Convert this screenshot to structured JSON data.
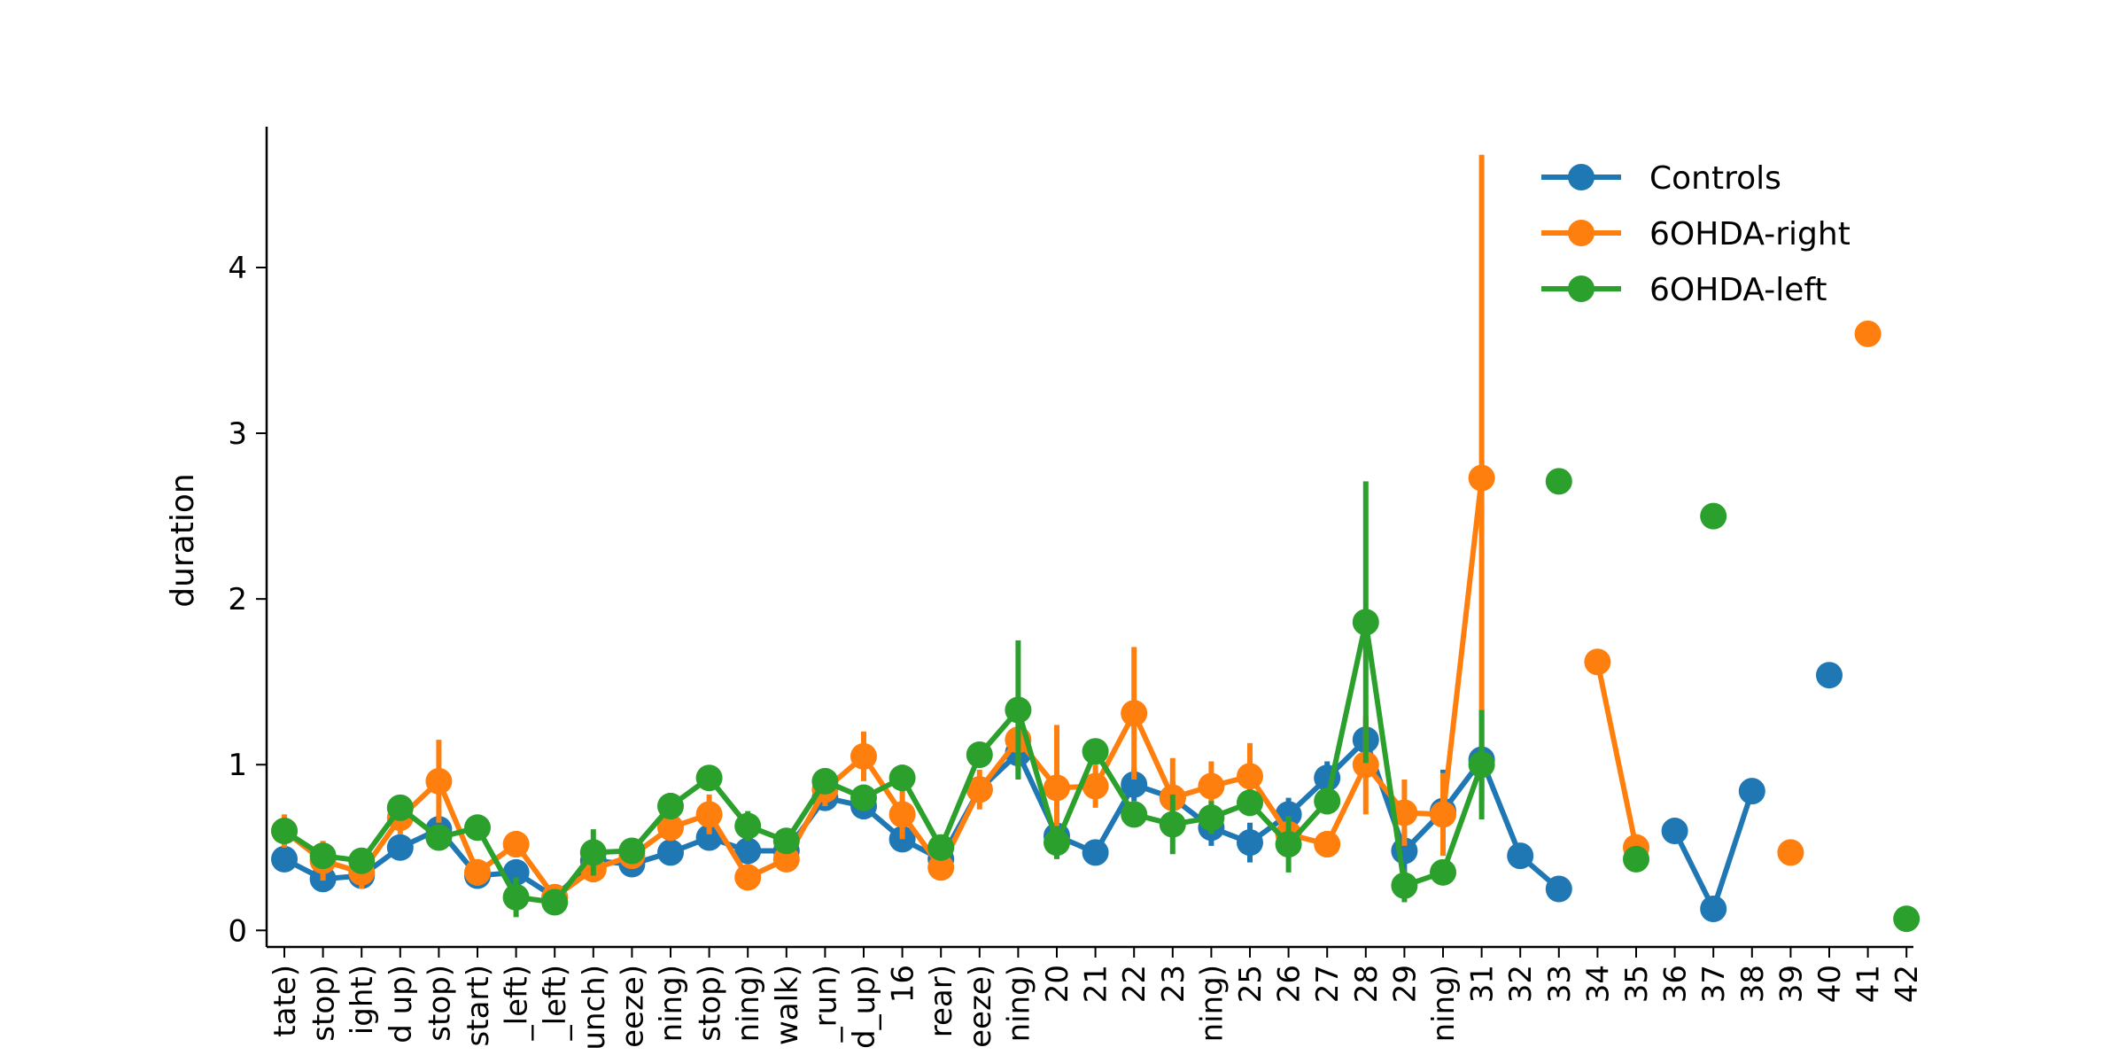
{
  "chart_data": {
    "type": "line",
    "ylabel": "duration",
    "ylim": [
      -0.1,
      4.85
    ],
    "yticks": [
      0,
      1,
      2,
      3,
      4
    ],
    "grid": false,
    "legend_position": "top-right",
    "categories": [
      "tate)",
      "stop)",
      "ight)",
      "d up)",
      "stop)",
      "start)",
      "_left)",
      "_left)",
      "unch)",
      "eeze)",
      "ning)",
      "stop)",
      "ning)",
      "walk)",
      "_run)",
      "d_up)",
      "16",
      "rear)",
      "eeze)",
      "ning)",
      "20",
      "21",
      "22",
      "23",
      "ning)",
      "25",
      "26",
      "27",
      "28",
      "29",
      "ning)",
      "31",
      "32",
      "33",
      "34",
      "35",
      "36",
      "37",
      "38",
      "39",
      "40",
      "41",
      "42"
    ],
    "series": [
      {
        "name": "Controls",
        "color": "#1f77b4",
        "values": [
          0.43,
          0.31,
          0.33,
          0.5,
          0.61,
          0.33,
          0.35,
          0.2,
          0.42,
          0.4,
          0.47,
          0.56,
          0.48,
          0.48,
          0.8,
          0.75,
          0.55,
          0.43,
          0.85,
          1.07,
          0.57,
          0.47,
          0.88,
          0.8,
          0.62,
          0.53,
          0.7,
          0.92,
          1.15,
          0.48,
          0.72,
          1.03,
          0.45,
          0.25,
          null,
          null,
          0.6,
          0.13,
          0.84,
          null,
          1.54,
          null,
          null
        ],
        "err": [
          0.05,
          0.04,
          0.05,
          0.06,
          0.06,
          0.05,
          0.05,
          0.04,
          0.05,
          0.05,
          0.06,
          0.07,
          0.07,
          0.06,
          0.06,
          0.08,
          0.07,
          0.06,
          0.07,
          0.15,
          0.1,
          0.06,
          0.1,
          0.1,
          0.11,
          0.12,
          0.1,
          0.1,
          0.13,
          0.13,
          0.25,
          0.3,
          0,
          0,
          0,
          0,
          0,
          0,
          0,
          0,
          0,
          0,
          0
        ]
      },
      {
        "name": "6OHDA-right",
        "color": "#ff7f0e",
        "values": [
          0.6,
          0.42,
          0.35,
          0.68,
          0.9,
          0.35,
          0.52,
          0.2,
          0.37,
          0.45,
          0.62,
          0.7,
          0.32,
          0.43,
          0.85,
          1.05,
          0.7,
          0.38,
          0.85,
          1.15,
          0.86,
          0.87,
          1.31,
          0.8,
          0.87,
          0.93,
          0.58,
          0.52,
          1.0,
          0.71,
          0.7,
          2.73,
          null,
          null,
          1.62,
          0.5,
          null,
          null,
          null,
          0.47,
          null,
          3.6,
          null
        ],
        "err": [
          0.1,
          0.12,
          0.1,
          0.1,
          0.25,
          0.08,
          0.08,
          0.05,
          0.08,
          0.07,
          0.08,
          0.12,
          0.06,
          0.07,
          0.1,
          0.15,
          0.15,
          0.06,
          0.12,
          0.18,
          0.38,
          0.13,
          0.4,
          0.24,
          0.15,
          0.2,
          0.1,
          0.08,
          0.3,
          0.2,
          0.25,
          1.95,
          0,
          0,
          0,
          0,
          0,
          0,
          0,
          0,
          0,
          0,
          0
        ]
      },
      {
        "name": "6OHDA-left",
        "color": "#2ca02c",
        "values": [
          0.6,
          0.45,
          0.42,
          0.74,
          0.56,
          0.62,
          0.2,
          0.17,
          0.47,
          0.48,
          0.75,
          0.92,
          0.63,
          0.54,
          0.9,
          0.8,
          0.92,
          0.5,
          1.06,
          1.33,
          0.53,
          1.08,
          0.7,
          0.64,
          0.68,
          0.77,
          0.52,
          0.78,
          1.86,
          0.27,
          0.35,
          1.0,
          null,
          2.71,
          null,
          0.43,
          null,
          2.5,
          null,
          null,
          null,
          null,
          0.07
        ],
        "err": [
          0.06,
          0.05,
          0.05,
          0.06,
          0.05,
          0.05,
          0.12,
          0.05,
          0.14,
          0.06,
          0.08,
          0.07,
          0.09,
          0.05,
          0.06,
          0.08,
          0.08,
          0.06,
          0.06,
          0.42,
          0.1,
          0.05,
          0.07,
          0.18,
          0.1,
          0.08,
          0.17,
          0.08,
          0.85,
          0.1,
          0.05,
          0.33,
          0,
          0,
          0,
          0,
          0,
          0,
          0,
          0,
          0,
          0,
          0
        ]
      }
    ]
  }
}
